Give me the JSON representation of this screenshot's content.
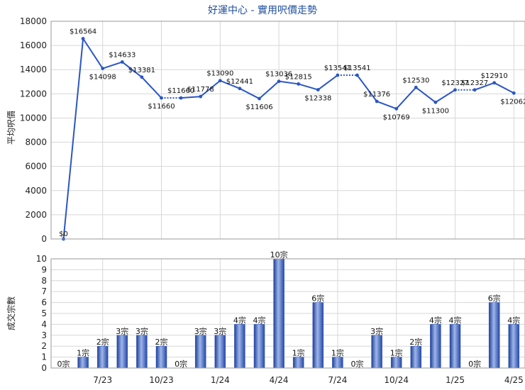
{
  "title": "好運中心 - 實用呎價走勢",
  "chart_data": [
    {
      "type": "line",
      "ylabel": "平均呎價",
      "ylim": [
        0,
        18000
      ],
      "yticks": [
        0,
        2000,
        4000,
        6000,
        8000,
        10000,
        12000,
        14000,
        16000,
        18000
      ],
      "grid": true,
      "line_color": "#2a56c6",
      "values": [
        0,
        16564,
        14098,
        14633,
        13381,
        11660,
        11660,
        11778,
        13090,
        12441,
        11606,
        13036,
        12815,
        12338,
        13541,
        13541,
        11376,
        10769,
        12530,
        11300,
        12327,
        12327,
        12910,
        12062
      ],
      "labels": [
        "$0",
        "$16564",
        "$14098",
        "$14633",
        "$13381",
        "$11660",
        "$11660",
        "$11778",
        "$13090",
        "$12441",
        "$11606",
        "$13036",
        "$12815",
        "$12338",
        "$13541",
        "$13541",
        "$11376",
        "$10769",
        "$12530",
        "$11300",
        "$12327",
        "$12327",
        "$12910",
        "$12062"
      ],
      "dotted_after": [
        5,
        14,
        20
      ]
    },
    {
      "type": "bar",
      "ylabel": "成交宗數",
      "ylim": [
        0,
        10
      ],
      "yticks": [
        0,
        1,
        2,
        3,
        4,
        5,
        6,
        7,
        8,
        9,
        10
      ],
      "grid": true,
      "bar_color": "#2f57b8",
      "values": [
        0,
        1,
        2,
        3,
        3,
        2,
        0,
        3,
        3,
        4,
        4,
        10,
        1,
        6,
        1,
        0,
        3,
        1,
        2,
        4,
        4,
        0,
        6,
        4
      ],
      "labels": [
        "0宗",
        "1宗",
        "2宗",
        "3宗",
        "3宗",
        "2宗",
        "0宗",
        "3宗",
        "3宗",
        "4宗",
        "4宗",
        "10宗",
        "1宗",
        "6宗",
        "1宗",
        "0宗",
        "3宗",
        "1宗",
        "2宗",
        "4宗",
        "4宗",
        "0宗",
        "6宗",
        "4宗"
      ],
      "xtick_labels": [
        "7/23",
        "10/23",
        "1/24",
        "4/24",
        "7/24",
        "10/24",
        "1/25",
        "4/25"
      ],
      "xtick_positions": [
        2,
        5,
        8,
        11,
        14,
        17,
        20,
        23
      ]
    }
  ]
}
